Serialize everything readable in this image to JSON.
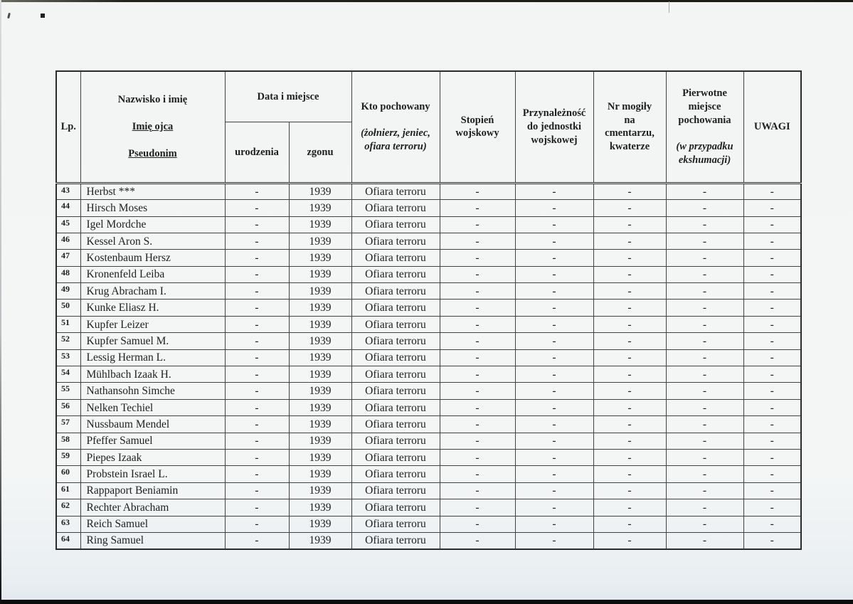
{
  "table": {
    "headers": {
      "lp": "Lp.",
      "name_main": "Nazwisko i imię",
      "name_father": "Imię ojca",
      "name_pseudonym": "Pseudonim",
      "date_place": "Data i miejsce",
      "birth": "urodzenia",
      "death": "zgonu",
      "who_buried_main": "Kto pochowany",
      "who_buried_sub": "(żołnierz, jeniec,\nofiara terroru)",
      "military_rank": "Stopień\nwojskowy",
      "unit_affiliation": "Przynależność\ndo jednostki\nwojskowej",
      "grave_number": "Nr mogiły\nna\ncmentarzu,\nkwaterze",
      "original_place_main": "Pierwotne\nmiejsce\npochowania",
      "original_place_sub": "(w przypadku\nekshumacji)",
      "remarks": "UWAGI"
    },
    "rows": [
      {
        "lp": "43",
        "name": "Herbst ***",
        "birth": "-",
        "death": "1939",
        "who": "Ofiara terroru",
        "rank": "-",
        "unit": "-",
        "grave": "-",
        "original": "-",
        "remarks": "-"
      },
      {
        "lp": "44",
        "name": "Hirsch Moses",
        "birth": "-",
        "death": "1939",
        "who": "Ofiara terroru",
        "rank": "-",
        "unit": "-",
        "grave": "-",
        "original": "-",
        "remarks": "-"
      },
      {
        "lp": "45",
        "name": "Igel Mordche",
        "birth": "-",
        "death": "1939",
        "who": "Ofiara terroru",
        "rank": "-",
        "unit": "-",
        "grave": "-",
        "original": "-",
        "remarks": "-"
      },
      {
        "lp": "46",
        "name": "Kessel Aron S.",
        "birth": "-",
        "death": "1939",
        "who": "Ofiara terroru",
        "rank": "-",
        "unit": "-",
        "grave": "-",
        "original": "-",
        "remarks": "-"
      },
      {
        "lp": "47",
        "name": "Kostenbaum Hersz",
        "birth": "-",
        "death": "1939",
        "who": "Ofiara terroru",
        "rank": "-",
        "unit": "-",
        "grave": "-",
        "original": "-",
        "remarks": "-"
      },
      {
        "lp": "48",
        "name": "Kronenfeld Leiba",
        "birth": "-",
        "death": "1939",
        "who": "Ofiara terroru",
        "rank": "-",
        "unit": "-",
        "grave": "-",
        "original": "-",
        "remarks": "-"
      },
      {
        "lp": "49",
        "name": "Krug Abracham I.",
        "birth": "-",
        "death": "1939",
        "who": "Ofiara terroru",
        "rank": "-",
        "unit": "-",
        "grave": "-",
        "original": "-",
        "remarks": "-"
      },
      {
        "lp": "50",
        "name": "Kunke Eliasz H.",
        "birth": "-",
        "death": "1939",
        "who": "Ofiara terroru",
        "rank": "-",
        "unit": "-",
        "grave": "-",
        "original": "-",
        "remarks": "-"
      },
      {
        "lp": "51",
        "name": "Kupfer Leizer",
        "birth": "-",
        "death": "1939",
        "who": "Ofiara terroru",
        "rank": "-",
        "unit": "-",
        "grave": "-",
        "original": "-",
        "remarks": "-"
      },
      {
        "lp": "52",
        "name": "Kupfer Samuel M.",
        "birth": "-",
        "death": "1939",
        "who": "Ofiara terroru",
        "rank": "-",
        "unit": "-",
        "grave": "-",
        "original": "-",
        "remarks": "-"
      },
      {
        "lp": "53",
        "name": "Lessig Herman L.",
        "birth": "-",
        "death": "1939",
        "who": "Ofiara terroru",
        "rank": "-",
        "unit": "-",
        "grave": "-",
        "original": "-",
        "remarks": "-"
      },
      {
        "lp": "54",
        "name": "Mühlbach Izaak H.",
        "birth": "-",
        "death": "1939",
        "who": "Ofiara terroru",
        "rank": "-",
        "unit": "-",
        "grave": "-",
        "original": "-",
        "remarks": "-"
      },
      {
        "lp": "55",
        "name": "Nathansohn Simche",
        "birth": "-",
        "death": "1939",
        "who": "Ofiara terroru",
        "rank": "-",
        "unit": "-",
        "grave": "-",
        "original": "-",
        "remarks": "-"
      },
      {
        "lp": "56",
        "name": "Nelken Techiel",
        "birth": "-",
        "death": "1939",
        "who": "Ofiara terroru",
        "rank": "-",
        "unit": "-",
        "grave": "-",
        "original": "-",
        "remarks": "-"
      },
      {
        "lp": "57",
        "name": "Nussbaum Mendel",
        "birth": "-",
        "death": "1939",
        "who": "Ofiara terroru",
        "rank": "-",
        "unit": "-",
        "grave": "-",
        "original": "-",
        "remarks": "-"
      },
      {
        "lp": "58",
        "name": "Pfeffer Samuel",
        "birth": "-",
        "death": "1939",
        "who": "Ofiara terroru",
        "rank": "-",
        "unit": "-",
        "grave": "-",
        "original": "-",
        "remarks": "-"
      },
      {
        "lp": "59",
        "name": "Piepes Izaak",
        "birth": "-",
        "death": "1939",
        "who": "Ofiara terroru",
        "rank": "-",
        "unit": "-",
        "grave": "-",
        "original": "-",
        "remarks": "-"
      },
      {
        "lp": "60",
        "name": "Probstein Israel L.",
        "birth": "-",
        "death": "1939",
        "who": "Ofiara terroru",
        "rank": "-",
        "unit": "-",
        "grave": "-",
        "original": "-",
        "remarks": "-"
      },
      {
        "lp": "61",
        "name": "Rappaport Beniamin",
        "birth": "-",
        "death": "1939",
        "who": "Ofiara terroru",
        "rank": "-",
        "unit": "-",
        "grave": "-",
        "original": "-",
        "remarks": "-"
      },
      {
        "lp": "62",
        "name": "Rechter Abracham",
        "birth": "-",
        "death": "1939",
        "who": "Ofiara terroru",
        "rank": "-",
        "unit": "-",
        "grave": "-",
        "original": "-",
        "remarks": "-"
      },
      {
        "lp": "63",
        "name": "Reich Samuel",
        "birth": "-",
        "death": "1939",
        "who": "Ofiara terroru",
        "rank": "-",
        "unit": "-",
        "grave": "-",
        "original": "-",
        "remarks": "-"
      },
      {
        "lp": "64",
        "name": "Ring Samuel",
        "birth": "-",
        "death": "1939",
        "who": "Ofiara terroru",
        "rank": "-",
        "unit": "-",
        "grave": "-",
        "original": "-",
        "remarks": "-"
      }
    ]
  }
}
